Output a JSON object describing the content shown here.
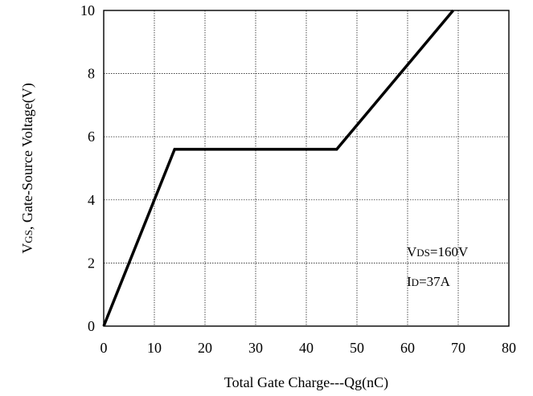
{
  "chart_data": {
    "type": "line",
    "xlabel": "Total Gate Charge---Qg(nC)",
    "ylabel": {
      "prefix": "V",
      "subscript": "GS",
      "suffix": ", Gate-Source Voltage(V)"
    },
    "xlim": [
      0,
      80
    ],
    "ylim": [
      0,
      10
    ],
    "x_ticks": [
      0,
      10,
      20,
      30,
      40,
      50,
      60,
      70,
      80
    ],
    "y_ticks": [
      0,
      2,
      4,
      6,
      8,
      10
    ],
    "grid": true,
    "series": [
      {
        "x": [
          0,
          14,
          46,
          69
        ],
        "y": [
          0,
          5.6,
          5.6,
          10
        ],
        "color": "#000000"
      }
    ],
    "annotations": [
      {
        "prefix": "V",
        "subscript": "DS",
        "suffix": "=160V"
      },
      {
        "prefix": "I",
        "subscript": "D",
        "suffix": "=37A"
      }
    ]
  }
}
